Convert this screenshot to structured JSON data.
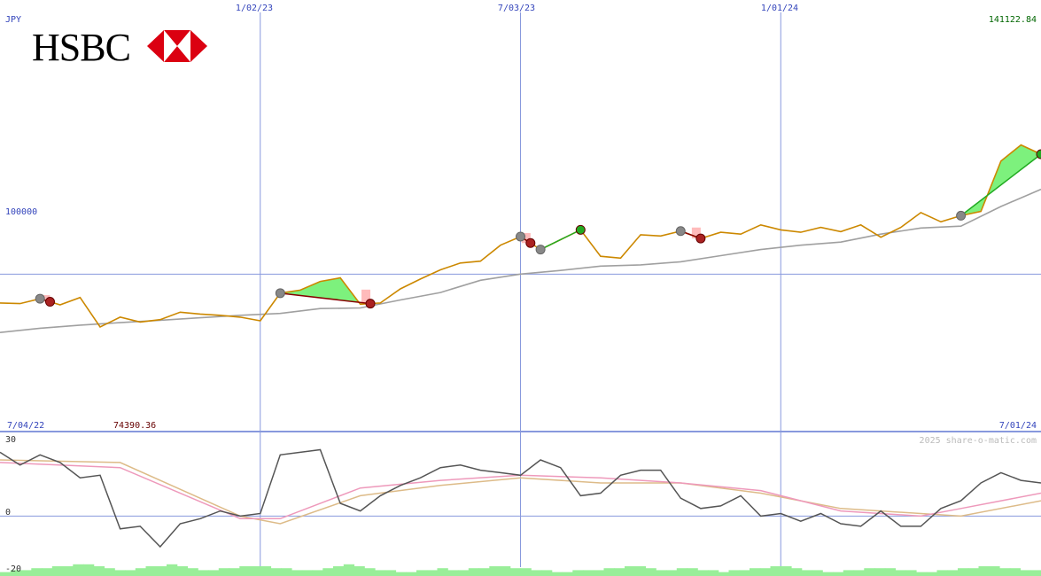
{
  "chart_data": [
    {
      "type": "line",
      "title": "",
      "brand": "HSBC",
      "currency_label": "JPY",
      "y_max_label": "141122.84",
      "y_min_label": "74390.36",
      "y_ref_label": "100000",
      "ylim": [
        74390.36,
        141122.84
      ],
      "x_start_label": "7/04/22",
      "x_end_label": "7/01/24",
      "x_ticks": [
        "1/02/23",
        "7/03/23",
        "1/01/24"
      ],
      "grid": true,
      "colors": {
        "price": "#cc8800",
        "relative": "#a0a0a0",
        "gain": "#66ee66",
        "loss": "#ffaaaa",
        "grid": "#8899dd",
        "max_label": "#006600",
        "min_label": "#660000",
        "axis_label": "#3344bb"
      },
      "series": [
        {
          "key": "price",
          "x": [
            "2022-07-04",
            "2022-07-18",
            "2022-08-01",
            "2022-08-15",
            "2022-08-29",
            "2022-09-12",
            "2022-09-26",
            "2022-10-10",
            "2022-10-24",
            "2022-11-07",
            "2022-11-21",
            "2022-12-05",
            "2022-12-19",
            "2023-01-02",
            "2023-01-16",
            "2023-01-30",
            "2023-02-13",
            "2023-02-27",
            "2023-03-13",
            "2023-03-27",
            "2023-04-10",
            "2023-04-24",
            "2023-05-08",
            "2023-05-22",
            "2023-06-05",
            "2023-06-19",
            "2023-07-03",
            "2023-07-17",
            "2023-07-31",
            "2023-08-14",
            "2023-08-28",
            "2023-09-11",
            "2023-09-25",
            "2023-10-09",
            "2023-10-23",
            "2023-11-06",
            "2023-11-20",
            "2023-12-04",
            "2023-12-18",
            "2024-01-01",
            "2024-01-15",
            "2024-01-29",
            "2024-02-12",
            "2024-02-26",
            "2024-03-11",
            "2024-03-25",
            "2024-04-08",
            "2024-04-22",
            "2024-05-06",
            "2024-05-20",
            "2024-06-03",
            "2024-06-17",
            "2024-07-01"
          ],
          "values": [
            95300,
            95200,
            96000,
            95000,
            96200,
            91400,
            93000,
            92200,
            92600,
            93800,
            93500,
            93300,
            93000,
            92400,
            96900,
            97400,
            98800,
            99400,
            95100,
            95300,
            97600,
            99200,
            100700,
            101800,
            102100,
            104700,
            106100,
            104000,
            105600,
            107200,
            102900,
            102600,
            106400,
            106200,
            107000,
            105800,
            106800,
            106500,
            108000,
            107200,
            106800,
            107600,
            106900,
            108000,
            106000,
            107600,
            110000,
            108500,
            109500,
            110200,
            118400,
            121000,
            119500
          ]
        },
        {
          "key": "relative",
          "x": [
            "2022-07-04",
            "2022-08-01",
            "2022-08-29",
            "2022-09-26",
            "2022-10-24",
            "2022-11-21",
            "2022-12-19",
            "2023-01-16",
            "2023-02-13",
            "2023-03-13",
            "2023-04-10",
            "2023-05-08",
            "2023-06-05",
            "2023-07-03",
            "2023-07-31",
            "2023-08-28",
            "2023-09-25",
            "2023-10-23",
            "2023-11-20",
            "2023-12-18",
            "2024-01-15",
            "2024-02-12",
            "2024-03-11",
            "2024-04-08",
            "2024-05-06",
            "2024-06-03",
            "2024-07-01"
          ],
          "values": [
            90500,
            91200,
            91700,
            92100,
            92500,
            92900,
            93300,
            93600,
            94400,
            94500,
            95800,
            97000,
            99000,
            100000,
            100600,
            101300,
            101500,
            102000,
            103000,
            104000,
            104700,
            105200,
            106500,
            107500,
            107800,
            111000,
            113800
          ]
        }
      ],
      "signals": [
        {
          "from": "2022-08-01",
          "to": "2022-08-08",
          "result": "loss"
        },
        {
          "from": "2023-01-16",
          "to": "2023-03-20",
          "result": "loss"
        },
        {
          "from": "2023-07-03",
          "to": "2023-07-10",
          "result": "loss"
        },
        {
          "from": "2023-07-17",
          "to": "2023-08-14",
          "result": "gain"
        },
        {
          "from": "2023-10-23",
          "to": "2023-11-06",
          "result": "loss"
        },
        {
          "from": "2024-05-06",
          "to": "2024-07-01",
          "result": "gain"
        }
      ]
    },
    {
      "type": "line",
      "title": "",
      "credit": "2025 share-o-matic.com",
      "ylim": [
        -20,
        30
      ],
      "y_ticks": [
        30,
        0,
        -20
      ],
      "series": [
        {
          "key": "momentum",
          "color": "#555555",
          "x": [
            "2022-07-04",
            "2022-07-18",
            "2022-08-01",
            "2022-08-15",
            "2022-08-29",
            "2022-09-12",
            "2022-09-26",
            "2022-10-10",
            "2022-10-24",
            "2022-11-07",
            "2022-11-21",
            "2022-12-05",
            "2022-12-19",
            "2023-01-02",
            "2023-01-16",
            "2023-01-30",
            "2023-02-13",
            "2023-02-27",
            "2023-03-13",
            "2023-03-27",
            "2023-04-10",
            "2023-04-24",
            "2023-05-08",
            "2023-05-22",
            "2023-06-05",
            "2023-06-19",
            "2023-07-03",
            "2023-07-17",
            "2023-07-31",
            "2023-08-14",
            "2023-08-28",
            "2023-09-11",
            "2023-09-25",
            "2023-10-09",
            "2023-10-23",
            "2023-11-06",
            "2023-11-20",
            "2023-12-04",
            "2023-12-18",
            "2024-01-01",
            "2024-01-15",
            "2024-01-29",
            "2024-02-12",
            "2024-02-26",
            "2024-03-11",
            "2024-03-25",
            "2024-04-08",
            "2024-04-22",
            "2024-05-06",
            "2024-05-20",
            "2024-06-03",
            "2024-06-17",
            "2024-07-01"
          ],
          "values": [
            25,
            20,
            24,
            21,
            15,
            16,
            -5,
            -4,
            -12,
            -3,
            -1,
            2,
            0,
            1,
            24,
            25,
            26,
            5,
            2,
            8,
            12,
            15,
            19,
            20,
            18,
            17,
            16,
            22,
            19,
            8,
            9,
            16,
            18,
            18,
            7,
            3,
            4,
            8,
            0,
            1,
            -2,
            1,
            -3,
            -4,
            2,
            -4,
            -4,
            3,
            6,
            13,
            17,
            14,
            13
          ]
        },
        {
          "key": "signal",
          "color": "#ee99bb",
          "x": [
            "2022-07-04",
            "2022-09-26",
            "2022-12-19",
            "2023-01-16",
            "2023-03-13",
            "2023-05-08",
            "2023-07-03",
            "2023-08-28",
            "2023-10-23",
            "2023-12-18",
            "2024-02-12",
            "2024-04-08",
            "2024-05-06",
            "2024-07-01"
          ],
          "values": [
            21,
            19,
            -1,
            -1,
            11,
            14,
            16,
            15,
            13,
            10,
            2,
            0,
            3,
            9
          ]
        },
        {
          "key": "average",
          "color": "#ddbb88",
          "x": [
            "2022-07-04",
            "2022-09-26",
            "2022-12-19",
            "2023-01-16",
            "2023-03-13",
            "2023-05-08",
            "2023-07-03",
            "2023-08-28",
            "2023-10-23",
            "2023-12-18",
            "2024-02-12",
            "2024-04-08",
            "2024-05-06",
            "2024-07-01"
          ],
          "values": [
            22,
            21,
            0,
            -3,
            8,
            12,
            15,
            13,
            13,
            9,
            3,
            1,
            0,
            6
          ]
        }
      ],
      "volume": {
        "color": "#99ee99",
        "values": [
          2,
          3,
          3,
          4,
          4,
          5,
          5,
          6,
          6,
          5,
          4,
          3,
          3,
          4,
          5,
          5,
          6,
          5,
          4,
          3,
          3,
          4,
          4,
          5,
          5,
          5,
          4,
          4,
          3,
          3,
          3,
          4,
          5,
          6,
          5,
          4,
          3,
          3,
          2,
          2,
          3,
          3,
          4,
          3,
          3,
          4,
          4,
          5,
          5,
          4,
          4,
          3,
          3,
          2,
          2,
          3,
          3,
          3,
          4,
          4,
          5,
          5,
          4,
          3,
          3,
          4,
          4,
          3,
          3,
          2,
          3,
          3,
          4,
          4,
          5,
          5,
          4,
          3,
          3,
          2,
          2,
          3,
          3,
          4,
          4,
          4,
          3,
          3,
          2,
          2,
          3,
          3,
          4,
          4,
          5,
          5,
          4,
          4,
          3,
          3
        ]
      }
    }
  ]
}
